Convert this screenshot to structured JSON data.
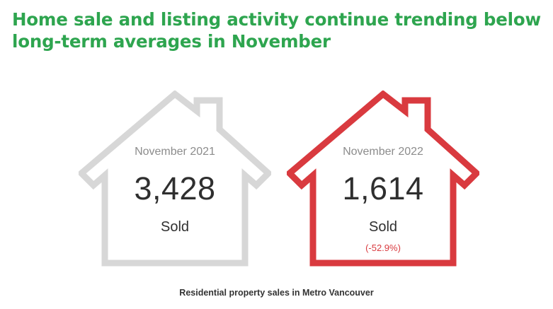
{
  "headline": "Home sale and listing activity continue trending below long-term averages in November",
  "colors": {
    "headline": "#2ea54f",
    "house_2021_outline": "#d7d7d7",
    "house_2022_outline": "#d93a3f",
    "change_text": "#d93a3f"
  },
  "houses": [
    {
      "icon": "house-outline-icon",
      "period": "November 2021",
      "value": "3,428",
      "label": "Sold"
    },
    {
      "icon": "house-outline-icon",
      "period": "November 2022",
      "value": "1,614",
      "label": "Sold",
      "change": "(-52.9%)"
    }
  ],
  "caption": "Residential property sales in Metro Vancouver"
}
